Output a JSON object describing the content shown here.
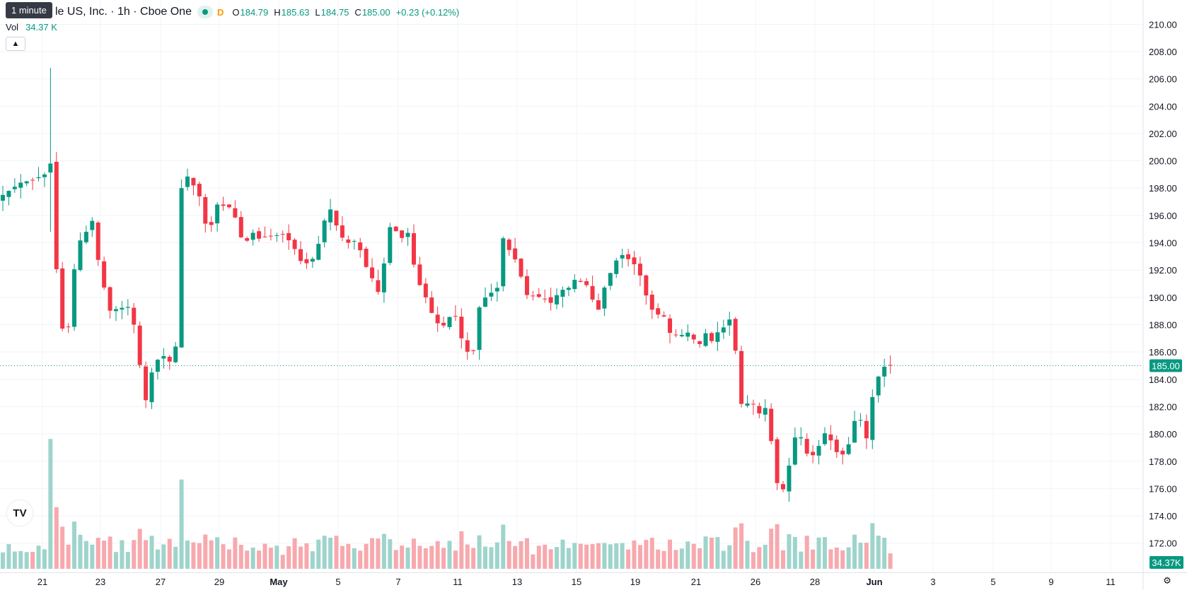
{
  "tooltip": "1 minute",
  "legend": {
    "title": "le US, Inc. · 1h · Cboe One",
    "interval_flag": "D",
    "o_label": "O",
    "o_value": "184.79",
    "h_label": "H",
    "h_value": "185.63",
    "l_label": "L",
    "l_value": "184.75",
    "c_label": "C",
    "c_value": "185.00",
    "change": "+0.23 (+0.12%)"
  },
  "volume": {
    "label": "Vol",
    "value": "34.37 K"
  },
  "collapse_icon": "chevron-up-icon",
  "logo_icon": "tradingview-logo-icon",
  "settings_icon": "gear-icon",
  "colors": {
    "up": "#089981",
    "down": "#f23645",
    "up_vol": "#9ed4cc",
    "down_vol": "#f7a9ae",
    "grid": "#f0f3fa",
    "text": "#131722"
  },
  "chart_data": {
    "type": "candlestick",
    "interval": "1h",
    "price_axis": {
      "ylim": [
        170.9,
        211.0
      ],
      "ticks": [
        "210.00",
        "208.00",
        "206.00",
        "204.00",
        "202.00",
        "200.00",
        "198.00",
        "196.00",
        "194.00",
        "192.00",
        "190.00",
        "188.00",
        "186.00",
        "184.00",
        "182.00",
        "180.00",
        "178.00",
        "176.00",
        "174.00",
        "172.00"
      ],
      "last_price": 185.0,
      "last_price_label": "185.00",
      "volume_label": "34.37K"
    },
    "time_axis": {
      "labels": [
        {
          "label": "21",
          "bold": false
        },
        {
          "label": "23",
          "bold": false
        },
        {
          "label": "27",
          "bold": false
        },
        {
          "label": "29",
          "bold": false
        },
        {
          "label": "May",
          "bold": true
        },
        {
          "label": "5",
          "bold": false
        },
        {
          "label": "7",
          "bold": false
        },
        {
          "label": "11",
          "bold": false
        },
        {
          "label": "13",
          "bold": false
        },
        {
          "label": "15",
          "bold": false
        },
        {
          "label": "19",
          "bold": false
        },
        {
          "label": "21",
          "bold": false
        },
        {
          "label": "26",
          "bold": false
        },
        {
          "label": "28",
          "bold": false
        },
        {
          "label": "Jun",
          "bold": true
        },
        {
          "label": "3",
          "bold": false
        },
        {
          "label": "5",
          "bold": false
        },
        {
          "label": "9",
          "bold": false
        },
        {
          "label": "11",
          "bold": false
        }
      ]
    },
    "close_path": [
      [
        0,
        197.5
      ],
      [
        3,
        198.4
      ],
      [
        5,
        198.6
      ],
      [
        7,
        199.0
      ],
      [
        7.3,
        197.8
      ],
      [
        7.5,
        195.9
      ],
      [
        7.8,
        197.4
      ],
      [
        8.0,
        199.8
      ],
      [
        8.3,
        196.5
      ],
      [
        8.7,
        195.1
      ],
      [
        9.5,
        187.0
      ],
      [
        10.2,
        188.0
      ],
      [
        11.5,
        187.7
      ],
      [
        12.2,
        193.8
      ],
      [
        13.5,
        194.4
      ],
      [
        15,
        195.6
      ],
      [
        15.6,
        193.5
      ],
      [
        16.5,
        191.8
      ],
      [
        17.8,
        189.0
      ],
      [
        19.5,
        189.2
      ],
      [
        21,
        189.3
      ],
      [
        22,
        188.0
      ],
      [
        22.8,
        185.7
      ],
      [
        23.6,
        183.1
      ],
      [
        24.3,
        182.0
      ],
      [
        25,
        184.5
      ],
      [
        26.5,
        185.9
      ],
      [
        28,
        185.3
      ],
      [
        29,
        186.4
      ],
      [
        29.4,
        190.4
      ],
      [
        29.8,
        196.9
      ],
      [
        30.4,
        200.2
      ],
      [
        31.2,
        198.4
      ],
      [
        32.8,
        198.0
      ],
      [
        33.6,
        195.6
      ],
      [
        34.8,
        195.0
      ],
      [
        36,
        196.8
      ],
      [
        38,
        196.6
      ],
      [
        39.6,
        195.4
      ],
      [
        40.4,
        193.4
      ],
      [
        41.6,
        194.9
      ],
      [
        43,
        194.3
      ],
      [
        45,
        194.5
      ],
      [
        47,
        194.6
      ],
      [
        48.2,
        194.1
      ],
      [
        49.2,
        193.4
      ],
      [
        50.4,
        192.3
      ],
      [
        51.6,
        192.7
      ],
      [
        52.6,
        193.0
      ],
      [
        53.6,
        195.3
      ],
      [
        55.2,
        196.6
      ],
      [
        56.4,
        194.6
      ],
      [
        58,
        194.0
      ],
      [
        59.6,
        194.2
      ],
      [
        60.4,
        192.7
      ],
      [
        61.8,
        191.6
      ],
      [
        63,
        190.4
      ],
      [
        64.2,
        192.9
      ],
      [
        65.2,
        195.7
      ],
      [
        66.6,
        194.2
      ],
      [
        68.2,
        194.8
      ],
      [
        69,
        192.4
      ],
      [
        70.2,
        190.6
      ],
      [
        71.4,
        189.7
      ],
      [
        72.4,
        188.3
      ],
      [
        73.6,
        187.9
      ],
      [
        74.6,
        188.0
      ],
      [
        75.6,
        189.4
      ],
      [
        76.6,
        187.4
      ],
      [
        77.8,
        186.2
      ],
      [
        78.8,
        185.3
      ],
      [
        79.6,
        188.4
      ],
      [
        80.2,
        189.7
      ],
      [
        81.6,
        190.2
      ],
      [
        83,
        190.7
      ],
      [
        83.8,
        194.5
      ],
      [
        85.2,
        193.3
      ],
      [
        86.6,
        192.4
      ],
      [
        87.6,
        190.2
      ],
      [
        89,
        190.1
      ],
      [
        90.6,
        190.0
      ],
      [
        92,
        189.6
      ],
      [
        93.6,
        190.5
      ],
      [
        95,
        190.7
      ],
      [
        96.2,
        191.4
      ],
      [
        97.4,
        191.0
      ],
      [
        98.6,
        190.8
      ],
      [
        99.6,
        188.4
      ],
      [
        100.8,
        190.5
      ],
      [
        101.8,
        191.6
      ],
      [
        103,
        192.7
      ],
      [
        104,
        193.1
      ],
      [
        105,
        192.8
      ],
      [
        106.6,
        192.2
      ],
      [
        107.6,
        190.7
      ],
      [
        108.6,
        189.3
      ],
      [
        109.6,
        188.8
      ],
      [
        111,
        188.6
      ],
      [
        112,
        187.4
      ],
      [
        113.4,
        187.2
      ],
      [
        114.6,
        187.3
      ],
      [
        115.6,
        187.6
      ],
      [
        116.6,
        185.9
      ],
      [
        117.6,
        187.6
      ],
      [
        119,
        186.8
      ],
      [
        120.4,
        187.7
      ],
      [
        121.6,
        187.9
      ],
      [
        122.6,
        189.1
      ],
      [
        123.2,
        184.6
      ],
      [
        124.2,
        181.6
      ],
      [
        125.6,
        182.7
      ],
      [
        126.8,
        181.1
      ],
      [
        127.6,
        182.7
      ],
      [
        128.8,
        180.3
      ],
      [
        129.6,
        177.0
      ],
      [
        130.6,
        175.5
      ],
      [
        131.6,
        176.6
      ],
      [
        132.6,
        179.3
      ],
      [
        133.6,
        180.4
      ],
      [
        134.6,
        178.8
      ],
      [
        135.6,
        178.2
      ],
      [
        136.6,
        178.8
      ],
      [
        137.6,
        179.6
      ],
      [
        138.4,
        180.5
      ],
      [
        139.2,
        179.2
      ],
      [
        140.4,
        178.4
      ],
      [
        141.6,
        178.6
      ],
      [
        142.6,
        180.2
      ],
      [
        143.4,
        181.7
      ],
      [
        144.2,
        180.8
      ],
      [
        145.2,
        179.4
      ],
      [
        145.8,
        182.4
      ],
      [
        146.6,
        183.6
      ],
      [
        147.4,
        184.8
      ],
      [
        148.4,
        185.0
      ],
      [
        149.2,
        185.0
      ]
    ],
    "spike": {
      "index": 8,
      "high": 206.8,
      "low": 194.8,
      "volume_k": 175
    }
  }
}
